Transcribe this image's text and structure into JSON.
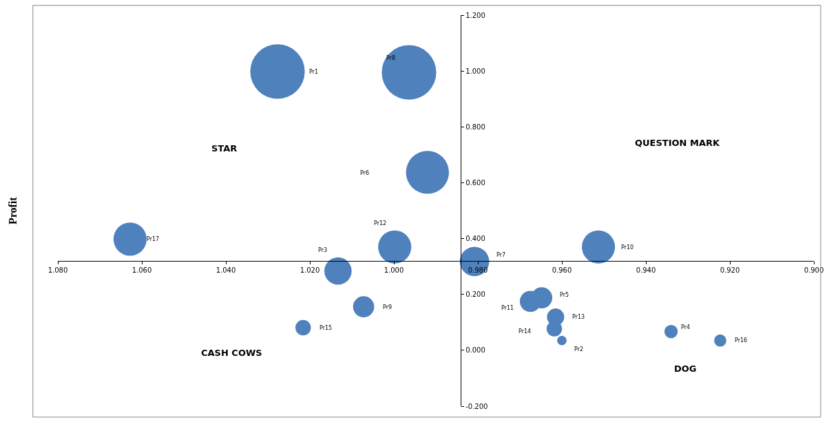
{
  "chart_data": {
    "type": "bubble",
    "ylabel": "Profit",
    "x": [
      1.0277,
      0.9964,
      0.992,
      0.9998,
      1.0628,
      1.0133,
      0.9808,
      0.9513,
      1.0072,
      1.0216,
      0.9675,
      0.9648,
      0.9615,
      0.9618,
      0.96,
      0.934,
      0.9223
    ],
    "values": [
      0.998,
      0.995,
      0.637,
      0.37,
      0.398,
      0.284,
      0.318,
      0.37,
      0.156,
      0.081,
      0.175,
      0.188,
      0.119,
      0.077,
      0.035,
      0.067,
      0.035
    ],
    "sizes": [
      1,
      1,
      0.62,
      0.37,
      0.37,
      0.25,
      0.29,
      0.37,
      0.15,
      0.08,
      0.15,
      0.15,
      0.1,
      0.08,
      0.03,
      0.06,
      0.05
    ],
    "color": "#4f81bd",
    "xlim": [
      1.08,
      0.9
    ],
    "ylim": [
      -0.2,
      1.2
    ],
    "xticks": [
      {
        "value": 1.08,
        "label": "1.080"
      },
      {
        "value": 1.06,
        "label": "1.060"
      },
      {
        "value": 1.04,
        "label": "1.040"
      },
      {
        "value": 1.02,
        "label": "1.020"
      },
      {
        "value": 1.0,
        "label": "1.000"
      },
      {
        "value": 0.98,
        "label": "0.980"
      },
      {
        "value": 0.96,
        "label": "0.960"
      },
      {
        "value": 0.94,
        "label": "0.940"
      },
      {
        "value": 0.92,
        "label": "0.920"
      },
      {
        "value": 0.9,
        "label": "0.900"
      }
    ],
    "yticks": [
      {
        "value": -0.2,
        "label": "-0.200"
      },
      {
        "value": 0.0,
        "label": "0.000"
      },
      {
        "value": 0.2,
        "label": "0.200"
      },
      {
        "value": 0.4,
        "label": "0.400"
      },
      {
        "value": 0.6,
        "label": "0.600"
      },
      {
        "value": 0.8,
        "label": "0.800"
      },
      {
        "value": 1.0,
        "label": "1.000"
      },
      {
        "value": 1.2,
        "label": "1.200"
      }
    ],
    "annotations": [
      "Pr1",
      "Pr8",
      "Pr6",
      "Pr12",
      "Pr17",
      "Pr3",
      "Pr7",
      "Pr10",
      "Pr9",
      "Pr15",
      "Pr11",
      "Pr5",
      "Pr13",
      "Pr14",
      "Pr2",
      "Pr4",
      "Pr16",
      "STAR",
      "QUESTION MARK",
      "CASH COWS",
      "DOG"
    ]
  }
}
